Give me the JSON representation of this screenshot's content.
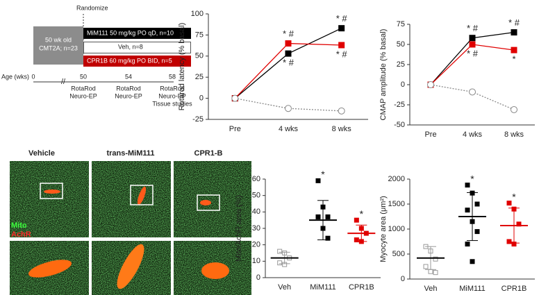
{
  "diagram": {
    "randomize": "Randomize",
    "cohort": [
      "50 wk old",
      "CMT2A; n=23"
    ],
    "arms": [
      "MiM111 50 mg/kg PO qD, n=10",
      "Veh, n=8",
      "CPR1B 60 mg/kg PO BID, n=5"
    ],
    "age_label": "Age (wks)",
    "ages": [
      "0",
      "50",
      "54",
      "58"
    ],
    "events": [
      [
        "RotaRod",
        "Neuro-EP"
      ],
      [
        "RotaRod",
        "Neuro-EP"
      ],
      [
        "RotaRod",
        "Neuro-EP",
        "Tissue studies"
      ]
    ]
  },
  "images": {
    "columns": [
      "Vehicle",
      "trans-MiM111",
      "CPR1-B"
    ],
    "channels": [
      "Mito",
      "AchR"
    ]
  },
  "chart_data": [
    {
      "type": "line",
      "ylabel": "Rotarod latency (% basal)",
      "categories": [
        "Pre",
        "4 wks",
        "8 wks"
      ],
      "ylim": [
        -25,
        100
      ],
      "yticks": [
        -25,
        0,
        25,
        50,
        75,
        100
      ],
      "series": [
        {
          "color": "#000000",
          "marker": "square",
          "values": [
            0,
            53,
            83
          ],
          "marks": [
            null,
            "* #",
            "* #"
          ]
        },
        {
          "color": "#e00000",
          "marker": "square",
          "values": [
            0,
            65,
            63
          ],
          "marks": [
            null,
            "* #",
            "* #"
          ]
        },
        {
          "color": "#888888",
          "marker": "open-circle",
          "dashed": true,
          "values": [
            0,
            -12,
            -15
          ]
        }
      ]
    },
    {
      "type": "line",
      "ylabel": "CMAP amplitude (% basal)",
      "categories": [
        "Pre",
        "4 wks",
        "8 wks"
      ],
      "ylim": [
        -50,
        75
      ],
      "yticks": [
        -50,
        -25,
        0,
        25,
        50,
        75
      ],
      "series": [
        {
          "color": "#000000",
          "marker": "square",
          "values": [
            0,
            58,
            65
          ],
          "marks": [
            null,
            "* #",
            "* #"
          ]
        },
        {
          "color": "#e00000",
          "marker": "square",
          "values": [
            0,
            50,
            43
          ],
          "marks": [
            null,
            "* #",
            "*"
          ]
        },
        {
          "color": "#888888",
          "marker": "open-circle",
          "dashed": true,
          "values": [
            0,
            -9,
            -31
          ]
        }
      ]
    },
    {
      "type": "dot",
      "ylabel": "Mito/AchR area (%)",
      "categories": [
        "Veh",
        "MiM111",
        "CPR1B"
      ],
      "ylim": [
        0,
        60
      ],
      "yticks": [
        0,
        10,
        20,
        30,
        40,
        50,
        60
      ],
      "colors": [
        "#999999",
        "#000000",
        "#e00000"
      ],
      "open": [
        true,
        false,
        false
      ],
      "points": [
        [
          16,
          15,
          12,
          9,
          8
        ],
        [
          59,
          43,
          37,
          37,
          30,
          24
        ],
        [
          35,
          30,
          27,
          23,
          22
        ]
      ],
      "means": [
        12,
        35,
        27
      ],
      "errors": [
        3.5,
        12,
        5
      ],
      "marks": [
        null,
        "*",
        "*"
      ]
    },
    {
      "type": "dot",
      "ylabel": "Myocyte area (μm²)",
      "categories": [
        "Veh",
        "MiM111",
        "CPR1B"
      ],
      "ylim": [
        0,
        2000
      ],
      "yticks": [
        0,
        500,
        1000,
        1500,
        2000
      ],
      "colors": [
        "#999999",
        "#000000",
        "#e00000"
      ],
      "open": [
        true,
        false,
        false
      ],
      "points": [
        [
          650,
          560,
          400,
          250,
          150,
          130
        ],
        [
          1880,
          1720,
          1500,
          1380,
          1150,
          950,
          700,
          350
        ],
        [
          1520,
          1400,
          1100,
          750,
          700
        ]
      ],
      "means": [
        420,
        1250,
        1070
      ],
      "errors": [
        230,
        480,
        350
      ],
      "marks": [
        null,
        "*",
        "*"
      ]
    }
  ]
}
